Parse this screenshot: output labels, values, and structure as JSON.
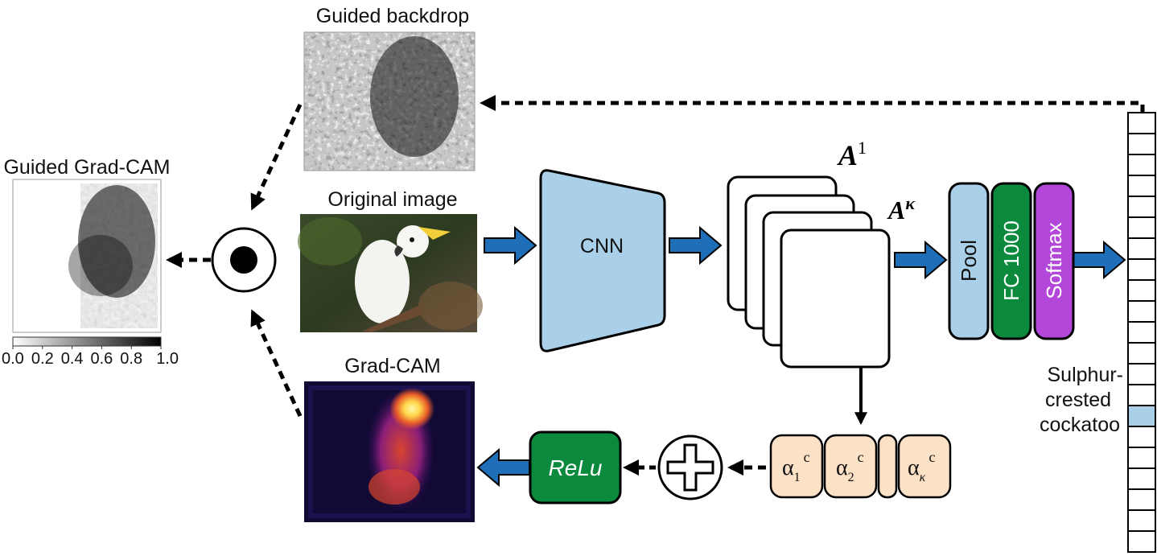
{
  "labels": {
    "guided_backdrop": "Guided backdrop",
    "guided_gradcam": "Guided Grad-CAM",
    "original_image": "Original image",
    "gradcam": "Grad-CAM",
    "cnn": "CNN",
    "feature_map_first": "A",
    "feature_map_first_sup": "1",
    "feature_map_last": "A",
    "feature_map_last_sup": "κ",
    "pool": "Pool",
    "fc": "FC 1000",
    "softmax": "Softmax",
    "relu": "ReLu",
    "class_line1": "Sulphur-",
    "class_line2": "crested",
    "class_line3": "cockatoo"
  },
  "alphas": [
    {
      "base": "α",
      "sub": "1",
      "sup": "c"
    },
    {
      "base": "α",
      "sub": "2",
      "sup": "c"
    },
    {
      "base": "",
      "sub": "",
      "sup": ""
    },
    {
      "base": "α",
      "sub": "κ",
      "sup": "c"
    }
  ],
  "colorbar": {
    "ticks": [
      "0.0",
      "0.2",
      "0.4",
      "0.6",
      "0.8",
      "1.0"
    ]
  },
  "output_vector": {
    "cells": 21,
    "highlighted_index": 14
  },
  "colors": {
    "arrow_blue": "#1f6fb8",
    "cnn_fill": "#a9d0e8",
    "pool_fill": "#a9d0e8",
    "fc_fill": "#0b8a3e",
    "softmax_fill": "#b347d9",
    "relu_fill": "#0b8a3e",
    "alpha_fill": "#fbe1c6",
    "highlight_cell": "#a9d0e8"
  },
  "icons": {
    "elementwise_product": "circled-dot-icon",
    "sum": "circled-plus-icon"
  }
}
